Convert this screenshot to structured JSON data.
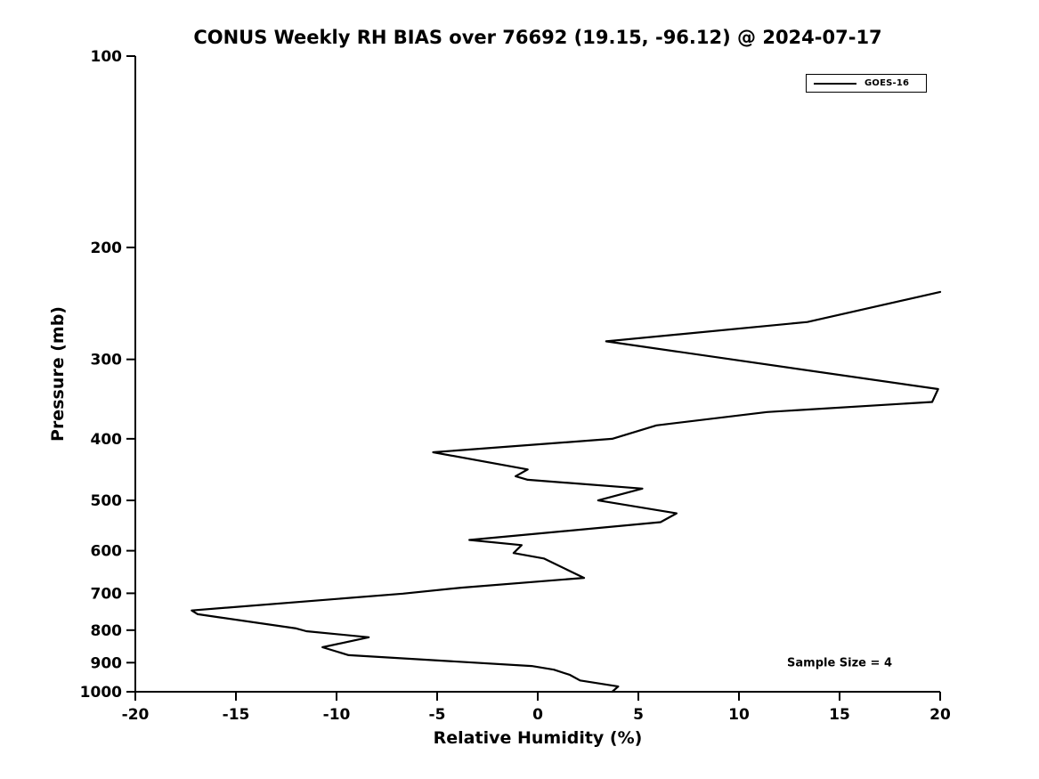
{
  "title": "CONUS Weekly RH BIAS over 76692 (19.15, -96.12) @ 2024-07-17",
  "legend": {
    "label": "GOES-16"
  },
  "annotation": {
    "text": "Sample Size = 4"
  },
  "chart_data": {
    "type": "line",
    "title": "CONUS Weekly RH BIAS over 76692 (19.15, -96.12) @ 2024-07-17",
    "xlabel": "Relative Humidity (%)",
    "ylabel": "Pressure (mb)",
    "xlim": [
      -20,
      20
    ],
    "ylim": [
      100,
      1000
    ],
    "y_scale": "log",
    "y_inverted": true,
    "x_ticks": [
      -20,
      -15,
      -10,
      -5,
      0,
      5,
      10,
      15,
      20
    ],
    "y_ticks": [
      100,
      200,
      300,
      400,
      500,
      600,
      700,
      800,
      900,
      1000
    ],
    "grid": false,
    "legend_position": "top-right",
    "legend_entries": [
      "GOES-16"
    ],
    "line_color": "#000000",
    "annotations": [
      {
        "text": "Sample Size = 4",
        "rh_bias_pct": 15,
        "pressure_mb": 900
      }
    ],
    "point_format": [
      "pressure_mb",
      "rh_bias_pct"
    ],
    "series": [
      {
        "name": "GOES-16",
        "color": "#000000",
        "points": [
          [
            235,
            20.0
          ],
          [
            262,
            13.4
          ],
          [
            281,
            3.4
          ],
          [
            334,
            19.9
          ],
          [
            350,
            19.6
          ],
          [
            363,
            11.4
          ],
          [
            381,
            5.9
          ],
          [
            400,
            3.7
          ],
          [
            420,
            -5.2
          ],
          [
            447,
            -0.5
          ],
          [
            458,
            -1.1
          ],
          [
            464,
            -0.5
          ],
          [
            479,
            5.2
          ],
          [
            500,
            3.0
          ],
          [
            524,
            6.9
          ],
          [
            541,
            6.1
          ],
          [
            577,
            -3.4
          ],
          [
            588,
            -0.8
          ],
          [
            605,
            -1.2
          ],
          [
            617,
            0.3
          ],
          [
            662,
            2.3
          ],
          [
            686,
            -3.8
          ],
          [
            701,
            -6.7
          ],
          [
            745,
            -17.2
          ],
          [
            755,
            -16.9
          ],
          [
            764,
            -15.8
          ],
          [
            795,
            -12.0
          ],
          [
            803,
            -11.5
          ],
          [
            821,
            -8.4
          ],
          [
            851,
            -10.7
          ],
          [
            876,
            -9.4
          ],
          [
            911,
            -0.3
          ],
          [
            923,
            0.8
          ],
          [
            941,
            1.6
          ],
          [
            960,
            2.1
          ],
          [
            981,
            4.0
          ],
          [
            1000,
            3.7
          ]
        ]
      }
    ]
  }
}
